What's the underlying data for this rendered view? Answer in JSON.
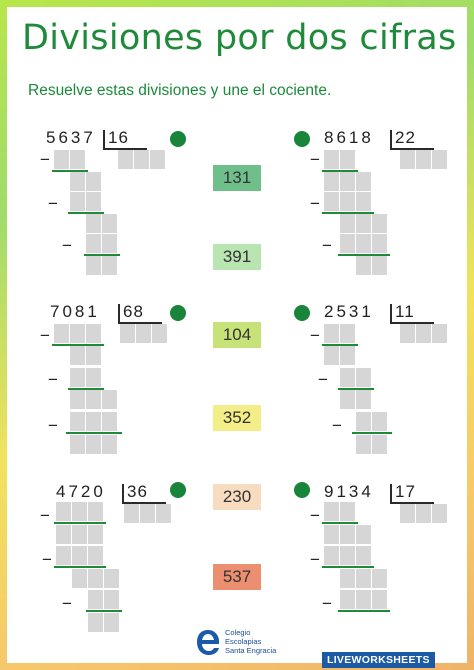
{
  "title": "Divisiones por dos cifras",
  "instruction": "Resuelve estas divisiones  y une el cociente.",
  "divisions": [
    {
      "dividend": "5637",
      "divisor": "16"
    },
    {
      "dividend": "8618",
      "divisor": "22"
    },
    {
      "dividend": "7081",
      "divisor": "68"
    },
    {
      "dividend": "2531",
      "divisor": "11"
    },
    {
      "dividend": "4720",
      "divisor": "36"
    },
    {
      "dividend": "9134",
      "divisor": "17"
    }
  ],
  "answers": [
    {
      "value": "131",
      "color": "#6fbf8a"
    },
    {
      "value": "391",
      "color": "#b9e5b0"
    },
    {
      "value": "104",
      "color": "#c8e27a"
    },
    {
      "value": "352",
      "color": "#f4ee88"
    },
    {
      "value": "230",
      "color": "#f8dcc0"
    },
    {
      "value": "537",
      "color": "#ec8f70"
    }
  ],
  "colors": {
    "accent": "#1e8a3a",
    "dot": "#18853a",
    "box": "#d6d6d6"
  },
  "logo": {
    "line1": "Colegio",
    "line2": "Escolapias",
    "line3": "Santa Engracia"
  },
  "badge": "LIVEWORKSHEETS"
}
